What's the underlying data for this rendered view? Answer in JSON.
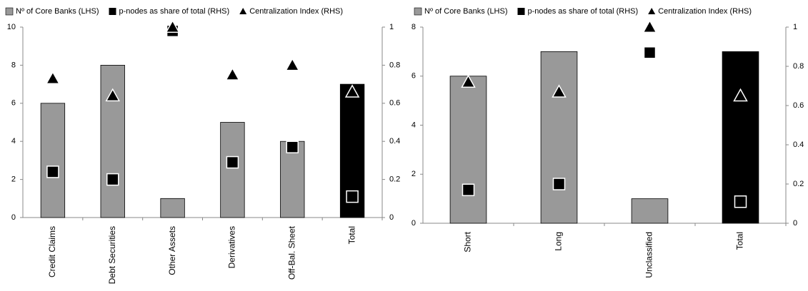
{
  "chart_data": [
    {
      "type": "bar",
      "categories": [
        "Credit Claims",
        "Debt Securities",
        "Other Assets",
        "Derivatives",
        "Off-Bal. Sheet",
        "Total"
      ],
      "series": [
        {
          "name": "Nº of Core Banks (LHS)",
          "type": "bar",
          "color": "#999999",
          "colors": [
            "#999999",
            "#999999",
            "#999999",
            "#999999",
            "#999999",
            "#000000"
          ],
          "values": [
            6,
            8,
            1,
            5,
            4,
            7
          ]
        },
        {
          "name": "p-nodes as share of total (RHS)",
          "type": "square",
          "axis": "y2",
          "color": "#000000",
          "values": [
            0.24,
            0.2,
            0.98,
            0.29,
            0.37,
            0.11
          ]
        },
        {
          "name": "Centralization Index (RHS)",
          "type": "triangle",
          "axis": "y2",
          "color": "#000000",
          "values": [
            0.73,
            0.64,
            1.0,
            0.75,
            0.8,
            0.66
          ]
        }
      ],
      "ylim": [
        0,
        10
      ],
      "yticks": [
        0,
        2,
        4,
        6,
        8,
        10
      ],
      "y2lim": [
        0,
        1
      ],
      "y2ticks": [
        0,
        0.2,
        0.4,
        0.6,
        0.8,
        1
      ]
    },
    {
      "type": "bar",
      "categories": [
        "Short",
        "Long",
        "Unclassified",
        "Total"
      ],
      "series": [
        {
          "name": "Nº of Core Banks (LHS)",
          "type": "bar",
          "color": "#999999",
          "colors": [
            "#999999",
            "#999999",
            "#999999",
            "#000000"
          ],
          "values": [
            6,
            7,
            1,
            7
          ]
        },
        {
          "name": "p-nodes as share of total (RHS)",
          "type": "square",
          "axis": "y2",
          "color": "#000000",
          "values": [
            0.17,
            0.2,
            0.87,
            0.11
          ]
        },
        {
          "name": "Centralization Index (RHS)",
          "type": "triangle",
          "axis": "y2",
          "color": "#000000",
          "values": [
            0.72,
            0.67,
            1.0,
            0.65
          ]
        }
      ],
      "ylim": [
        0,
        8
      ],
      "yticks": [
        0,
        2,
        4,
        6,
        8
      ],
      "y2lim": [
        0,
        1
      ],
      "y2ticks": [
        0,
        0.2,
        0.4,
        0.6,
        0.8,
        1
      ]
    }
  ]
}
